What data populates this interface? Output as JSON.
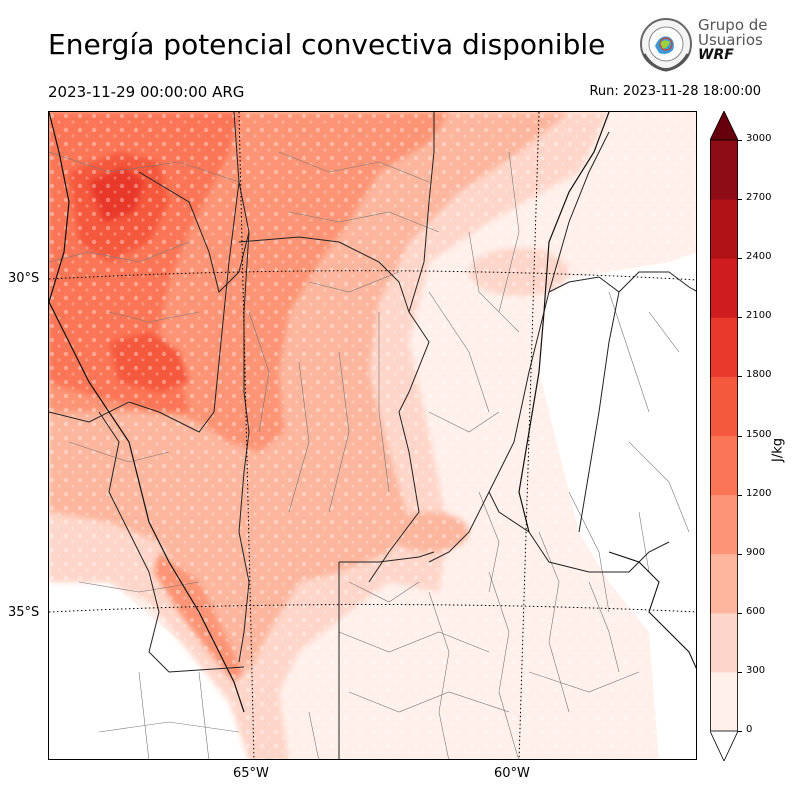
{
  "header": {
    "title": "Energía potencial convectiva disponible",
    "valid_time": "2023-11-29 00:00:00 ARG",
    "run_time": "Run: 2023-11-28 18:00:00"
  },
  "logo": {
    "line1": "Grupo de",
    "line2": "Usuarios",
    "line3": "WRF"
  },
  "map": {
    "lat_labels": [
      "30°S",
      "35°S"
    ],
    "lon_labels": [
      "65°W",
      "60°W"
    ]
  },
  "colorbar": {
    "unit": "J/kg",
    "levels": [
      0,
      300,
      600,
      900,
      1200,
      1500,
      1800,
      2100,
      2400,
      2700,
      3000
    ],
    "tick_labels": [
      "0",
      "300",
      "600",
      "900",
      "1200",
      "1500",
      "1800",
      "2100",
      "2400",
      "2700",
      "3000"
    ],
    "colors": [
      "#fff0eb",
      "#fed6c9",
      "#fcb69e",
      "#fc9475",
      "#fb7656",
      "#f4583d",
      "#e8392c",
      "#cf1c1f",
      "#b11218",
      "#8e0c13"
    ],
    "over_color": "#67000d",
    "under_color": "#ffffff"
  }
}
